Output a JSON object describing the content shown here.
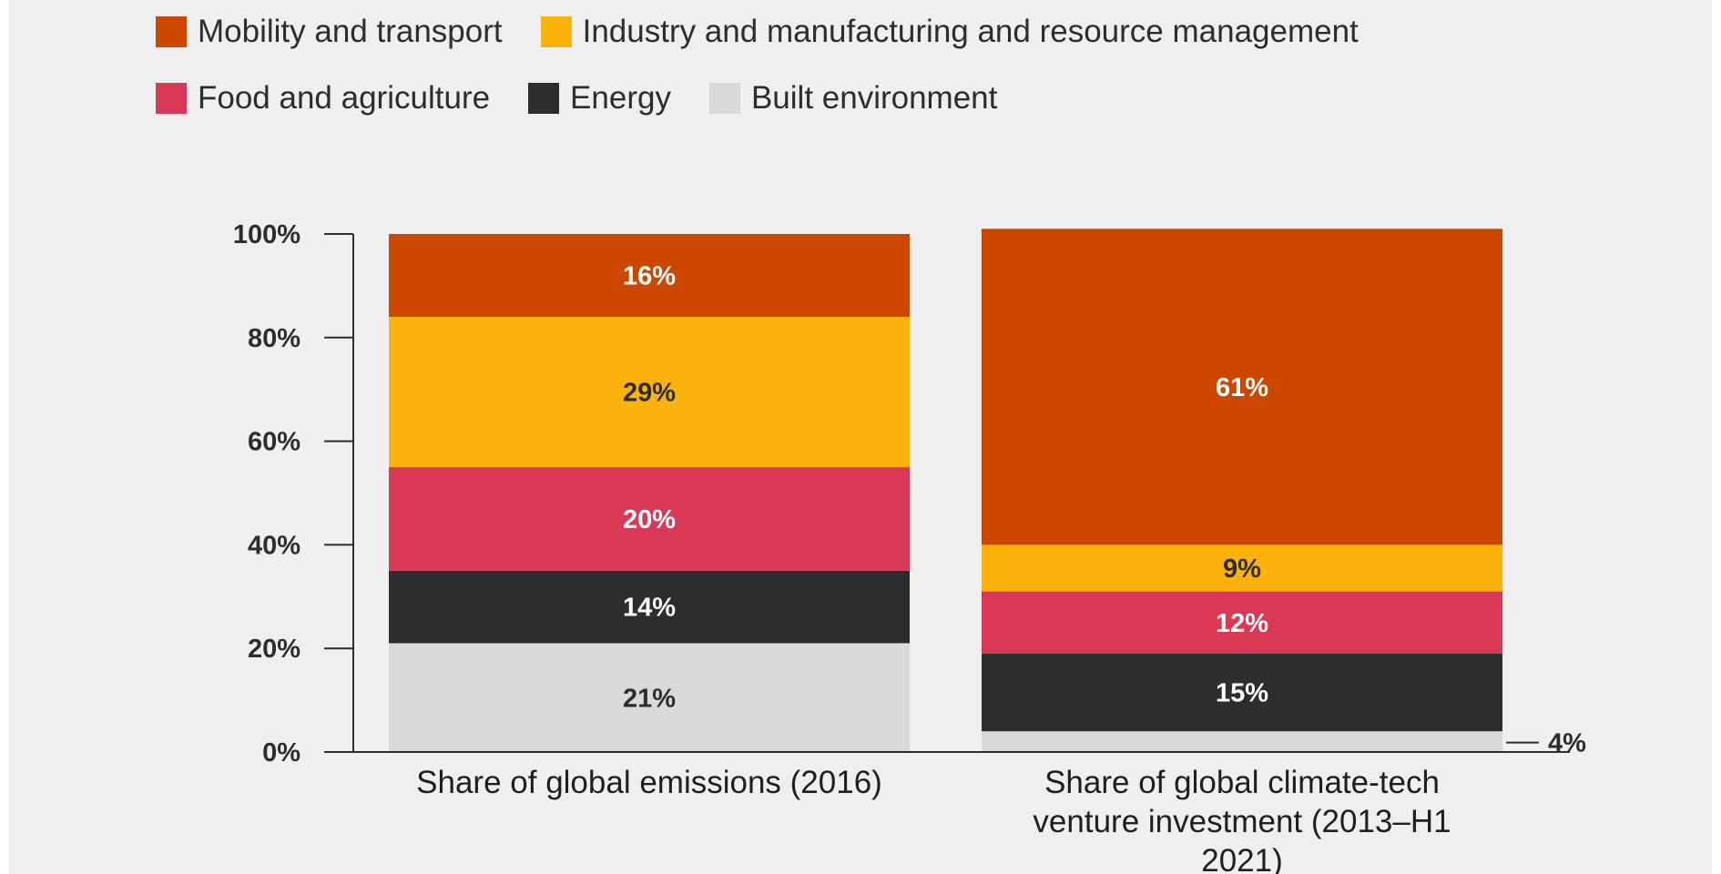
{
  "chart_data": {
    "type": "bar",
    "stacked": true,
    "ylim": [
      0,
      100
    ],
    "y_ticks": [
      {
        "value": 0,
        "label": "0%"
      },
      {
        "value": 20,
        "label": "20%"
      },
      {
        "value": 40,
        "label": "40%"
      },
      {
        "value": 60,
        "label": "60%"
      },
      {
        "value": 80,
        "label": "80%"
      },
      {
        "value": 100,
        "label": "100%"
      }
    ],
    "grid": false,
    "legend_position": "top-left",
    "categories": [
      [
        "Share of global emissions (2016)"
      ],
      [
        "Share of global climate-tech",
        "venture investment (2013–H1",
        "2021)"
      ]
    ],
    "series": [
      {
        "name": "Built environment",
        "color": "#d9d9d9",
        "label_color": "#2d2d2d",
        "values": [
          21,
          4
        ],
        "labels": [
          "21%",
          "4%"
        ],
        "label_outside": [
          false,
          true
        ]
      },
      {
        "name": "Energy",
        "color": "#2d2d2d",
        "label_color": "#ffffff",
        "values": [
          14,
          15
        ],
        "labels": [
          "14%",
          "15%"
        ],
        "label_outside": [
          false,
          false
        ]
      },
      {
        "name": "Food and agriculture",
        "color": "#d93954",
        "label_color": "#ffffff",
        "values": [
          20,
          12
        ],
        "labels": [
          "20%",
          "12%"
        ],
        "label_outside": [
          false,
          false
        ]
      },
      {
        "name": "Industry and manufacturing and resource management",
        "color": "#fbb20a",
        "label_color": "#2d2d2d",
        "values": [
          29,
          9
        ],
        "labels": [
          "29%",
          "9%"
        ],
        "label_outside": [
          false,
          false
        ]
      },
      {
        "name": "Mobility and transport",
        "color": "#cc4700",
        "label_color": "#ffffff",
        "values": [
          16,
          61
        ],
        "labels": [
          "16%",
          "61%"
        ],
        "label_outside": [
          false,
          false
        ]
      }
    ]
  },
  "legend": {
    "rows": [
      [
        {
          "label": "Mobility and transport",
          "color": "#cc4700"
        },
        {
          "label": "Industry and manufacturing and resource management",
          "color": "#fbb20a"
        }
      ],
      [
        {
          "label": "Food and agriculture",
          "color": "#d93954"
        },
        {
          "label": "Energy",
          "color": "#2d2d2d"
        },
        {
          "label": "Built environment",
          "color": "#d9d9d9"
        }
      ]
    ]
  }
}
